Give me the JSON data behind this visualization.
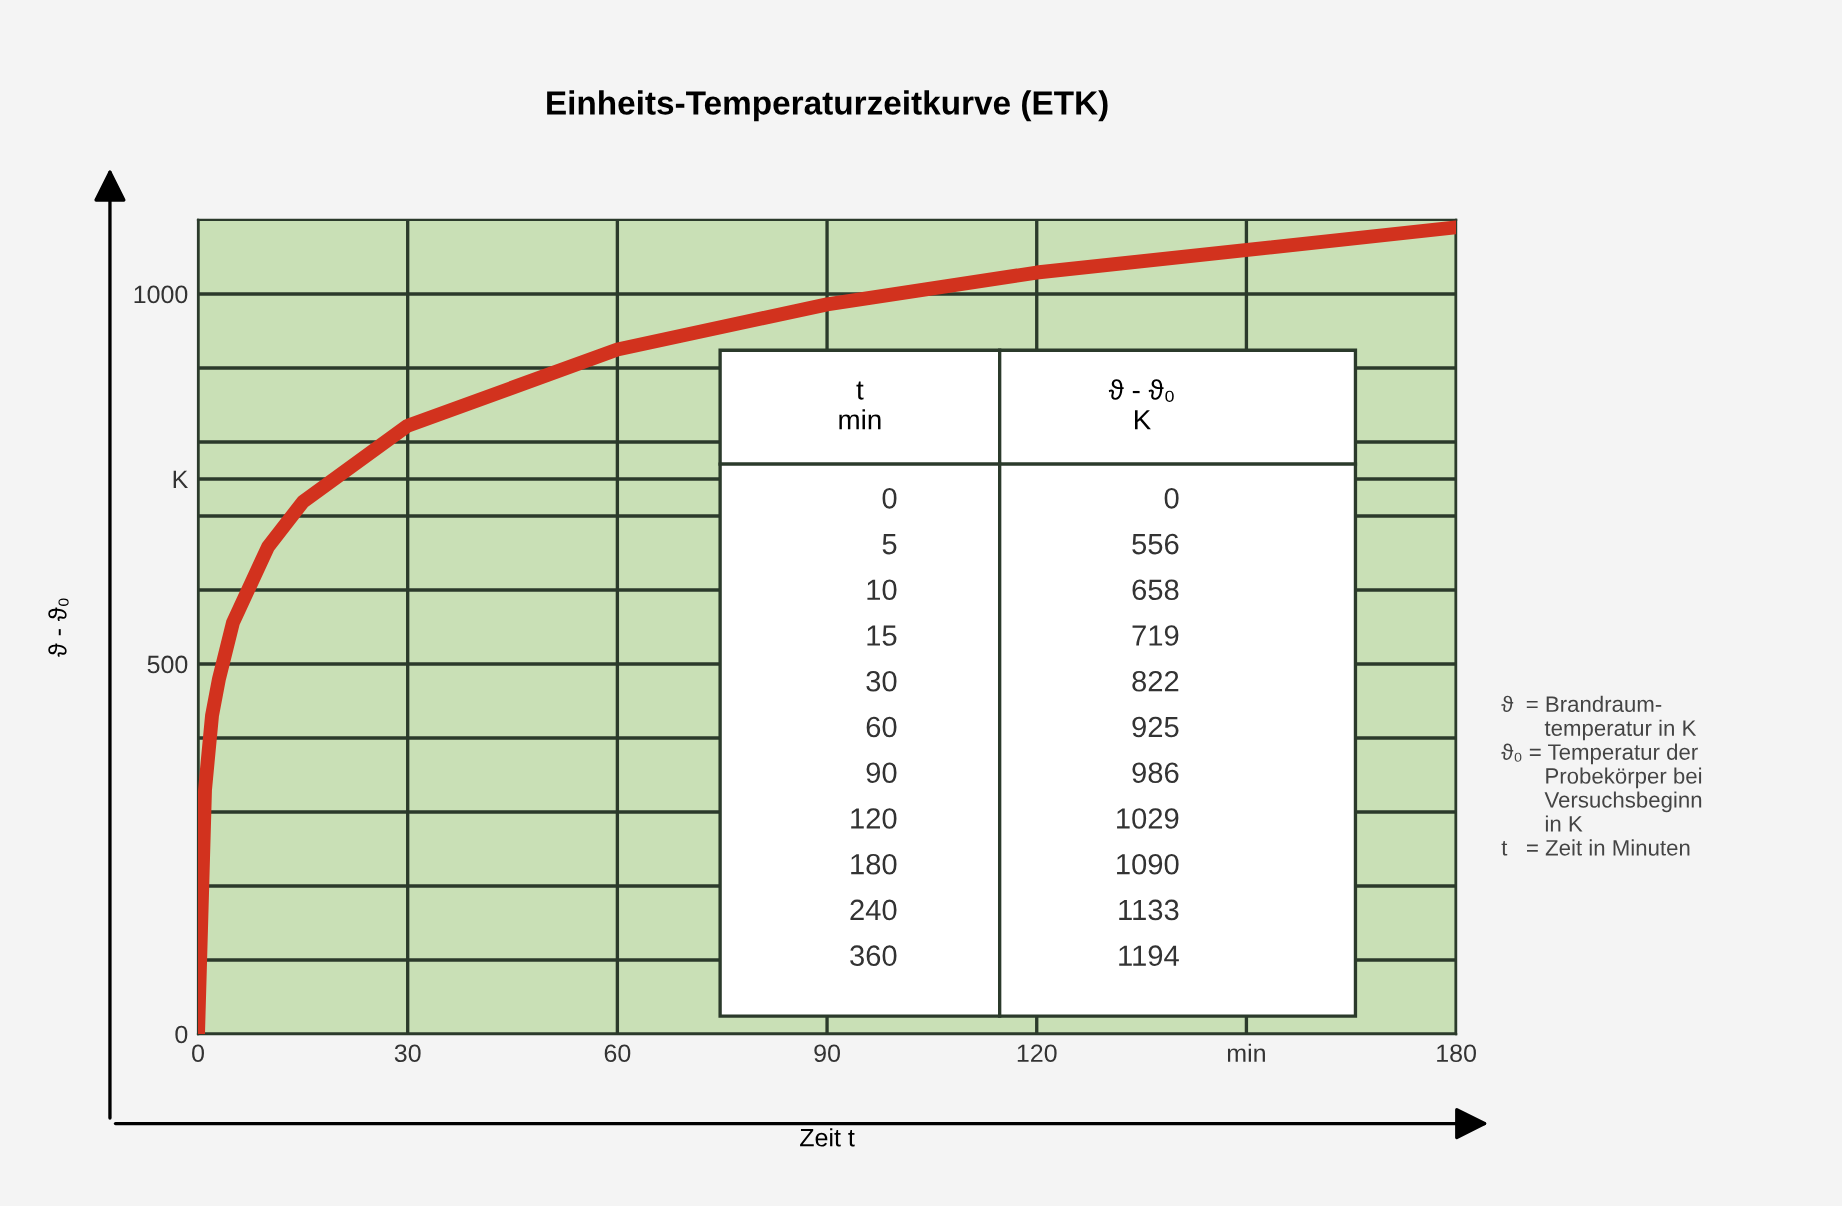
{
  "chart_data": {
    "type": "line",
    "title": "Einheits-Temperaturzeitkurve (ETK)",
    "xlabel": "Zeit t",
    "ylabel": "ϑ - ϑ₀",
    "x": [
      0,
      1,
      2,
      3,
      5,
      10,
      15,
      30,
      60,
      90,
      120,
      180
    ],
    "series": [
      {
        "color": "#d2321e",
        "values": [
          0,
          330,
          430,
          480,
          556,
          658,
          719,
          822,
          925,
          986,
          1029,
          1090
        ]
      }
    ],
    "xlim": [
      0,
      180
    ],
    "xticks": [
      0,
      30,
      60,
      90,
      120,
      {
        "value": 150,
        "label": "min"
      },
      180
    ],
    "ylim": [
      0,
      1100
    ],
    "yticks": [
      0,
      {
        "value": 100,
        "label": null
      },
      {
        "value": 200,
        "label": null
      },
      {
        "value": 300,
        "label": null
      },
      {
        "value": 400,
        "label": null
      },
      500,
      {
        "value": 600,
        "label": null
      },
      {
        "value": 700,
        "label": null
      },
      {
        "value": 750,
        "label": "K"
      },
      {
        "value": 800,
        "label": null
      },
      {
        "value": 900,
        "label": null
      },
      1000
    ],
    "grid": true,
    "legend": false,
    "marker": "none",
    "line_style": "solid",
    "annotations": [
      "t\nmin",
      "ϑ - ϑ₀\nK",
      "0",
      "0",
      "5",
      "556",
      "10",
      "658",
      "15",
      "719",
      "30",
      "822",
      "60",
      "925",
      "90",
      "986",
      "120",
      "1029",
      "180",
      "1090",
      "240",
      "1133",
      "360",
      "1194",
      "ϑ  = Brandraum-\n       temperatur in K\nϑ₀ = Temperatur der\n       Probekörper bei\n       Versuchsbeginn\n       in K\nt   = Zeit in Minuten"
    ]
  }
}
